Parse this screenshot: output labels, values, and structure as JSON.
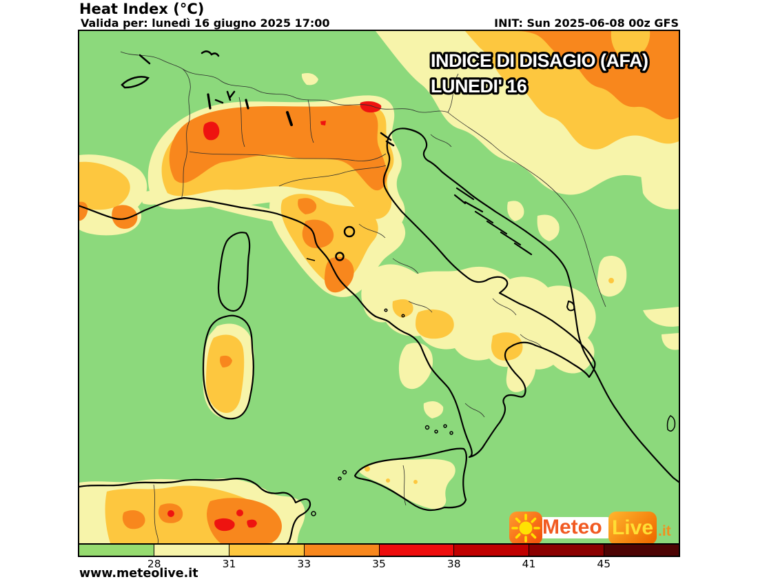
{
  "header": {
    "title": "Heat Index (°C)",
    "valid_for": "Valida per: lunedì 16 giugno 2025 17:00",
    "init": "INIT: Sun 2025-06-08 00z GFS"
  },
  "map": {
    "overlay_line1": "INDICE DI DISAGIO (AFA)",
    "overlay_line2": "LUNEDI' 16",
    "palette": {
      "base_green": "#8CD97C",
      "pale_yellow_28_31": "#F7F4AA",
      "gold_31_33": "#FDC73F",
      "orange_33_35": "#F8871D",
      "red_35_38": "#EE1310"
    }
  },
  "colorbar": {
    "tick_labels": [
      "28",
      "31",
      "33",
      "35",
      "38",
      "41",
      "45"
    ],
    "segment_colors": [
      "#96DB70",
      "#F7F4AA",
      "#FDC73F",
      "#F8871D",
      "#EE0D0D",
      "#C00000",
      "#8B0000",
      "#4D0404"
    ]
  },
  "logo": {
    "word1": "Meteo",
    "word2": "Live",
    "domain_suffix": ".it",
    "sun_color": "#FFE202"
  },
  "footer": {
    "website": "www.meteolive.it"
  }
}
